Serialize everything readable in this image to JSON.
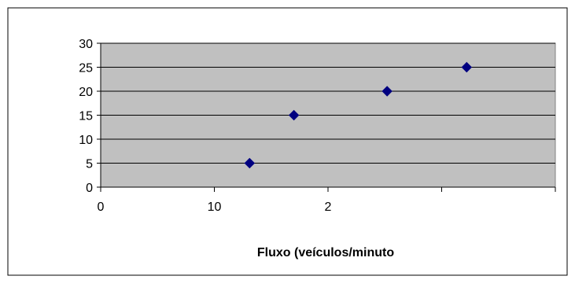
{
  "chart_data": {
    "type": "scatter",
    "title": "",
    "xlabel": "Fluxo (veículos/minuto",
    "ylabel": "",
    "xlim": [
      0,
      4
    ],
    "ylim": [
      0,
      30
    ],
    "x_tick_labels": [
      "0",
      "10",
      "2",
      "",
      ""
    ],
    "y_ticks": [
      0,
      5,
      10,
      15,
      20,
      25,
      30
    ],
    "grid": true,
    "legend": "none",
    "colors": {
      "marker": "#000080",
      "plot_area": "#c0c0c0",
      "gridline": "#000000",
      "border": "#000000"
    },
    "points": [
      {
        "x": 1.31,
        "y": 5
      },
      {
        "x": 1.7,
        "y": 15
      },
      {
        "x": 2.52,
        "y": 20
      },
      {
        "x": 3.22,
        "y": 25
      }
    ]
  }
}
